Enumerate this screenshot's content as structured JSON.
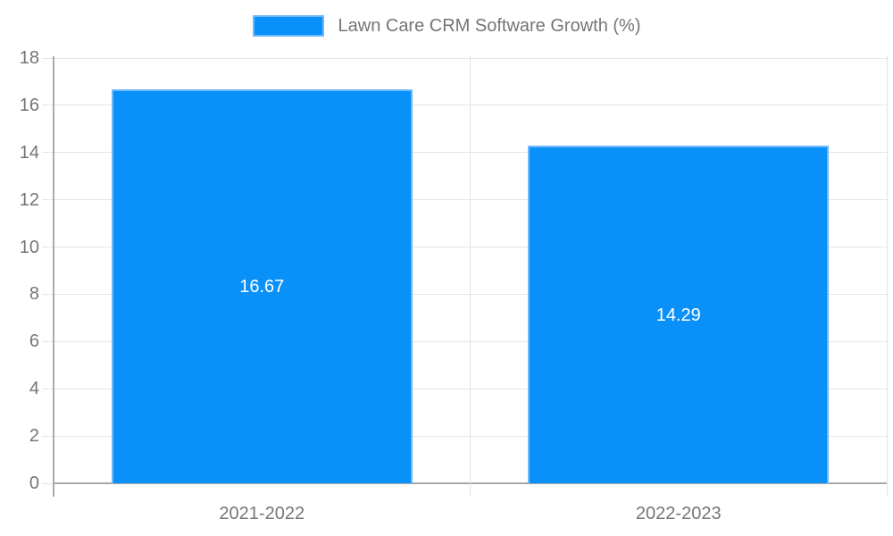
{
  "legend": {
    "label": "Lawn Care CRM Software Growth (%)"
  },
  "chart_data": {
    "type": "bar",
    "title": "Lawn Care CRM Software Growth (%)",
    "categories": [
      "2021-2022",
      "2022-2023"
    ],
    "series": [
      {
        "name": "Lawn Care CRM Software Growth (%)",
        "values": [
          16.67,
          14.29
        ],
        "value_labels": [
          "16.67",
          "14.29"
        ]
      }
    ],
    "xlabel": "",
    "ylabel": "",
    "ylim": [
      0,
      18
    ],
    "yticks": [
      0,
      2,
      4,
      6,
      8,
      10,
      12,
      14,
      16,
      18
    ],
    "grid": true,
    "legend_position": "top",
    "bar_width_fraction": 0.722,
    "colors": {
      "bar_fill": "#0991F9",
      "bar_border": "#6FB9FB",
      "grid": "#E6E6E6",
      "boundary": "#E2E2E2",
      "axis": "#A9A9A9",
      "text": "#757575",
      "bar_label": "#FFFFFF"
    }
  }
}
